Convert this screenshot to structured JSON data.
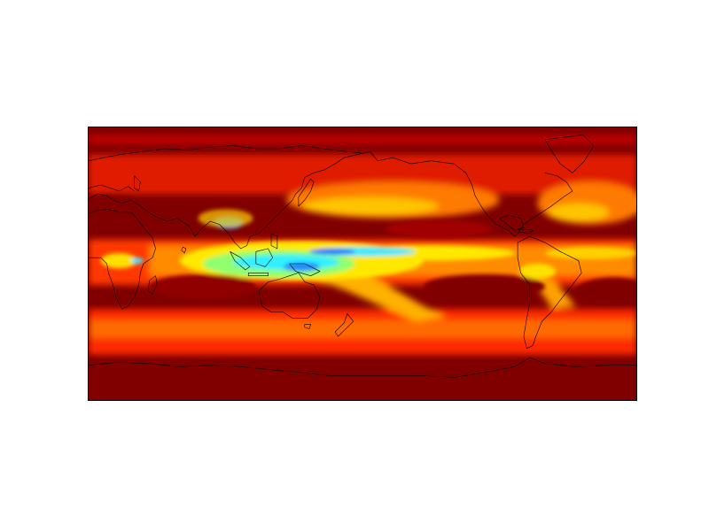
{
  "map": {
    "kind": "global-field-heatmap",
    "projection": "equirectangular",
    "lon_range": [
      20,
      380
    ],
    "lat_range": [
      -90,
      90
    ],
    "central_longitude": 200,
    "coastlines": true,
    "colormap": "jet",
    "colormap_colors": [
      "#00008f",
      "#0000ff",
      "#0080ff",
      "#00ffff",
      "#80ff80",
      "#ffff00",
      "#ff8000",
      "#ff0000",
      "#800000"
    ],
    "frame_color": "#000000",
    "coastline_color": "#000000",
    "visible_field_levels": [
      "dark-red",
      "red",
      "orange",
      "yellow",
      "light-green",
      "cyan",
      "light-blue",
      "blue"
    ],
    "title": "",
    "colorbar": false
  }
}
